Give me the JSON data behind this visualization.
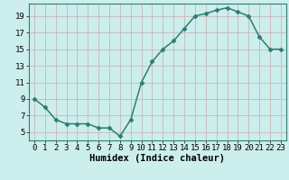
{
  "x": [
    0,
    1,
    2,
    3,
    4,
    5,
    6,
    7,
    8,
    9,
    10,
    11,
    12,
    13,
    14,
    15,
    16,
    17,
    18,
    19,
    20,
    21,
    22,
    23
  ],
  "y": [
    9,
    8,
    6.5,
    6,
    6,
    6,
    5.5,
    5.5,
    4.5,
    6.5,
    11,
    13.5,
    15,
    16,
    17.5,
    19,
    19.3,
    19.7,
    20,
    19.5,
    19,
    16.5,
    15,
    15
  ],
  "line_color": "#2e7d6e",
  "marker": "D",
  "marker_size": 2.5,
  "bg_color": "#cceeed",
  "grid_color": "#c8b8b8",
  "xlabel": "Humidex (Indice chaleur)",
  "ylabel": "",
  "xlim": [
    -0.5,
    23.5
  ],
  "ylim": [
    4,
    20.5
  ],
  "yticks": [
    5,
    7,
    9,
    11,
    13,
    15,
    17,
    19
  ],
  "xticks": [
    0,
    1,
    2,
    3,
    4,
    5,
    6,
    7,
    8,
    9,
    10,
    11,
    12,
    13,
    14,
    15,
    16,
    17,
    18,
    19,
    20,
    21,
    22,
    23
  ],
  "xlabel_fontsize": 7.5,
  "tick_fontsize": 6.5,
  "line_width": 1.1,
  "spine_color": "#2e7d6e"
}
